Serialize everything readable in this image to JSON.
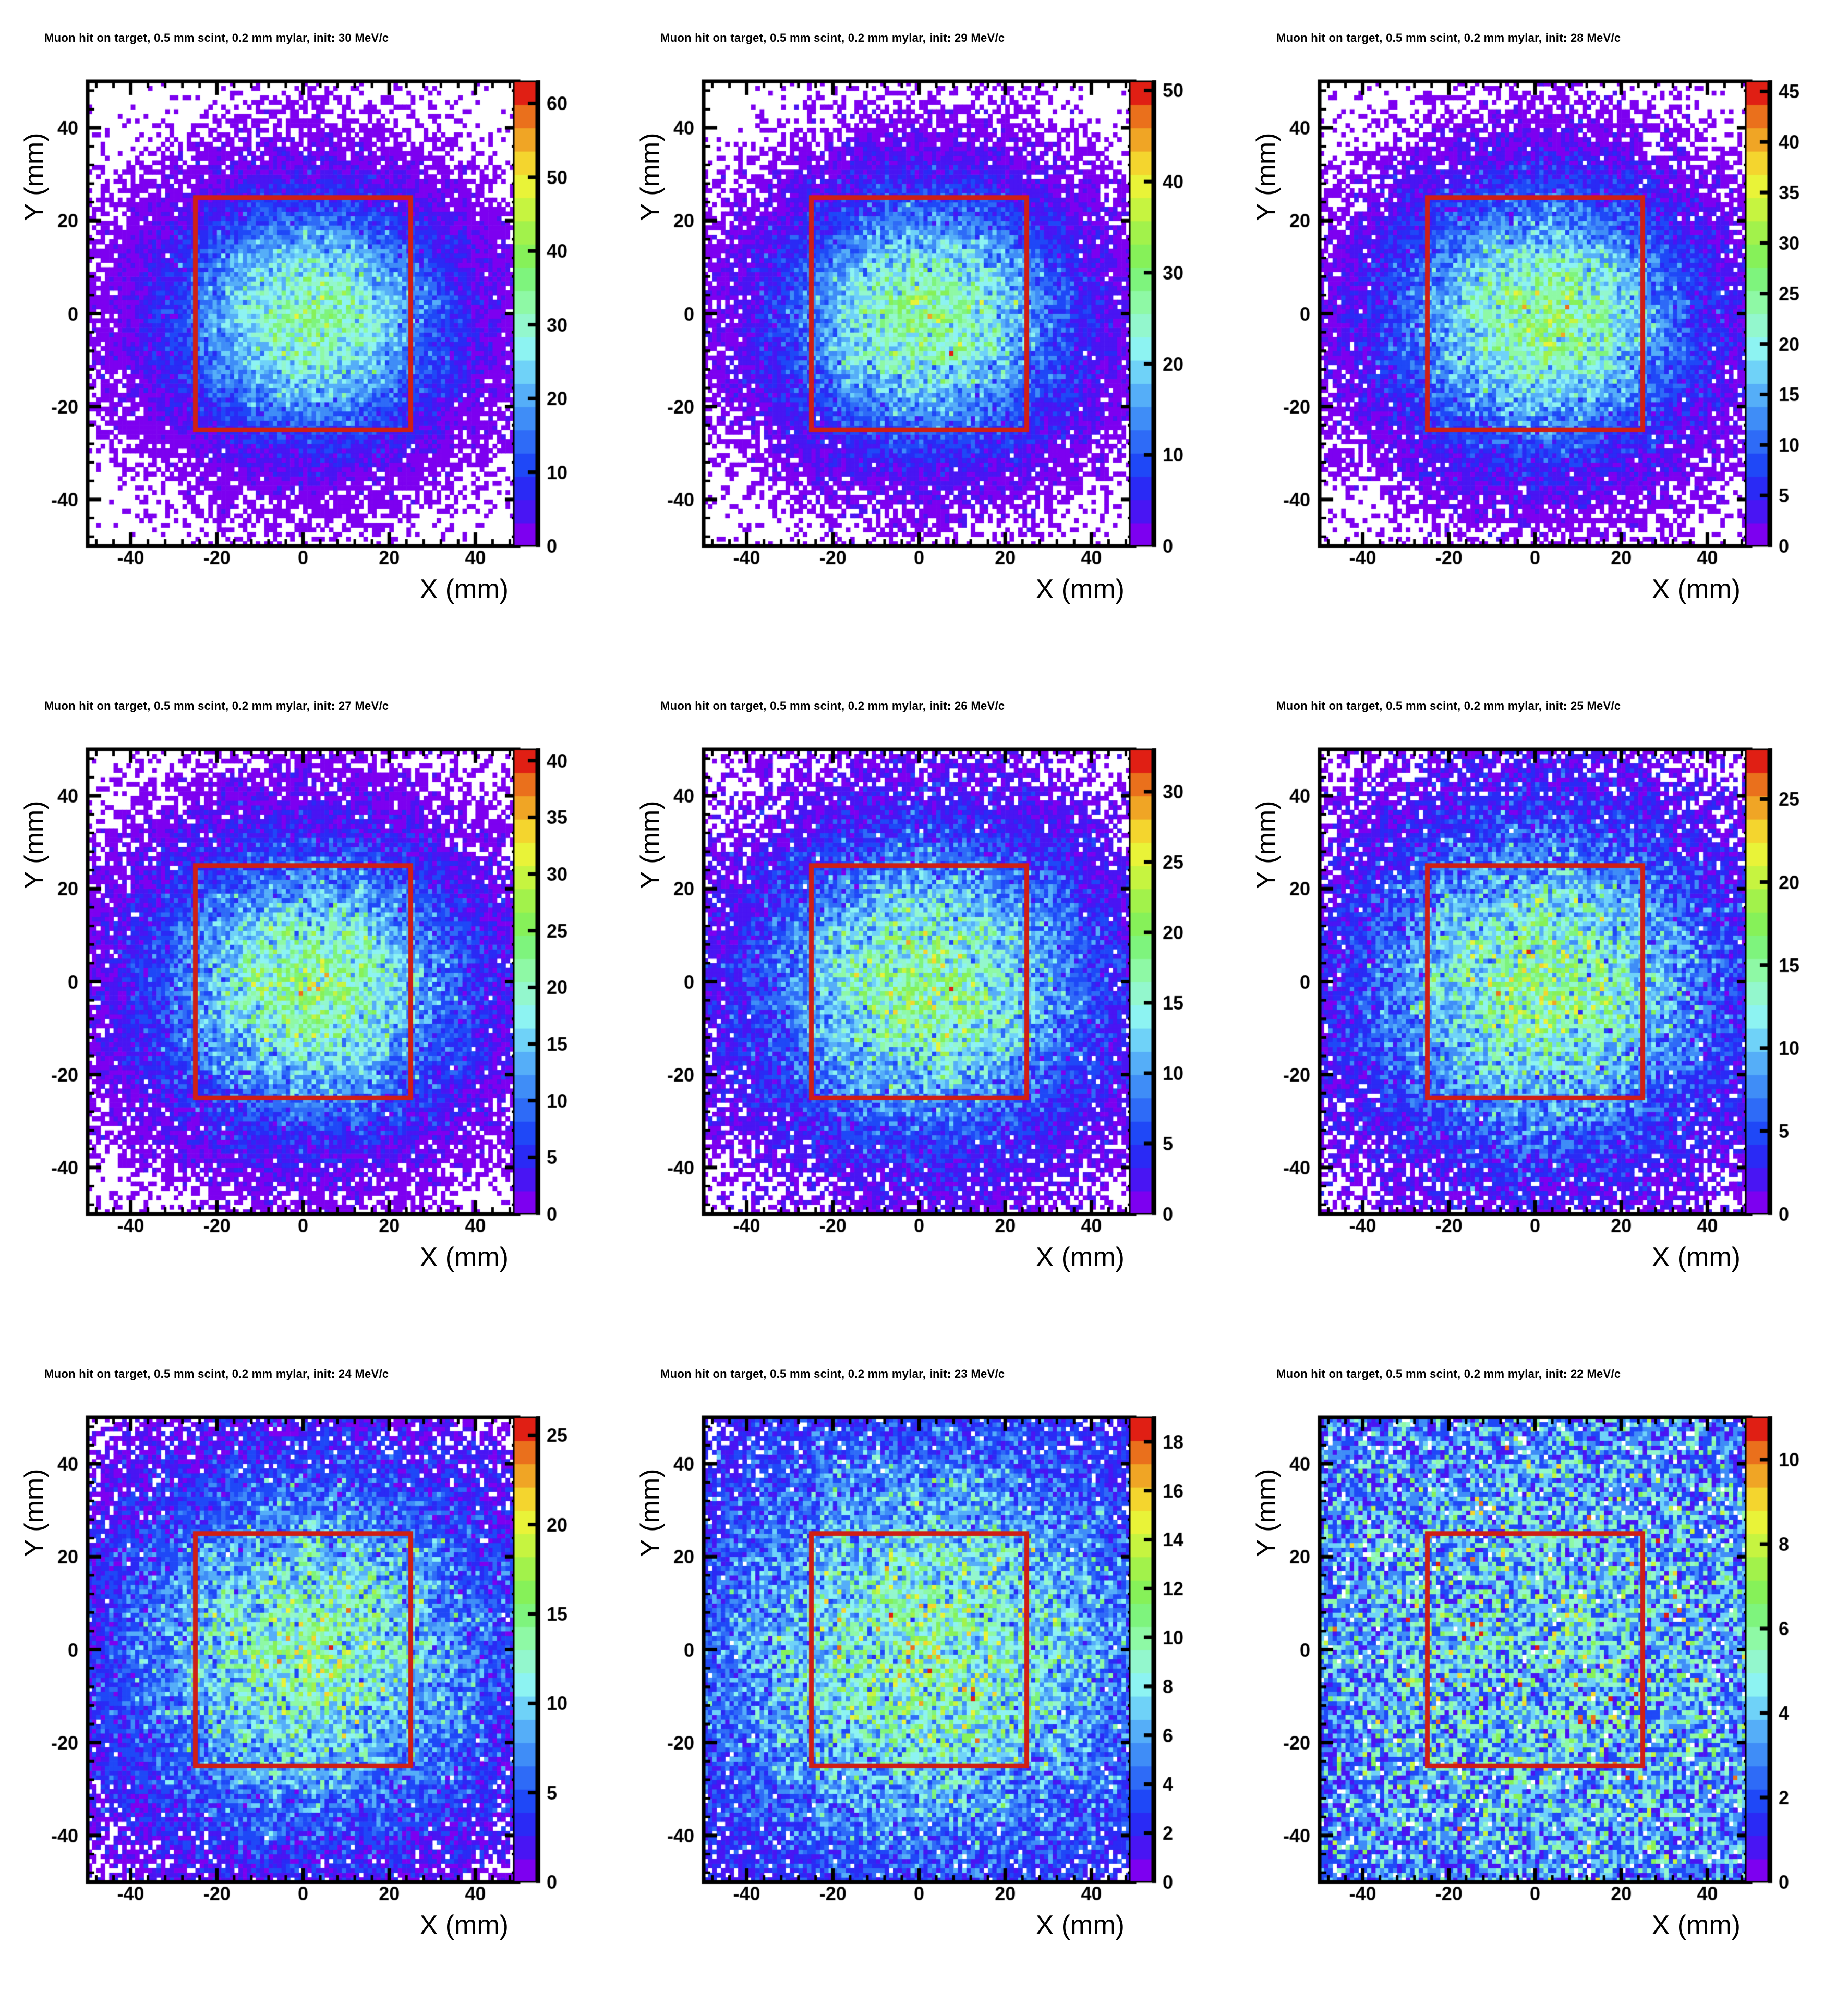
{
  "page": {
    "background": "#ffffff"
  },
  "axes": {
    "x_label": "X (mm)",
    "y_label": "Y (mm)",
    "x_range": [
      -50,
      50
    ],
    "y_range": [
      -50,
      50
    ],
    "x_ticks": [
      -40,
      -20,
      0,
      20,
      40
    ],
    "y_ticks": [
      -40,
      -20,
      0,
      20,
      40
    ],
    "minor_tick_step_mm": 4,
    "grid": false
  },
  "style": {
    "frame_color": "#000000",
    "text_color": "#000000",
    "acceptance_box_color": "#cf1f15",
    "empty_bin_color": "#ffffff",
    "palette": [
      "#7d00f0",
      "#4915f3",
      "#2a2af5",
      "#1f48f7",
      "#2e6bf7",
      "#3f8df7",
      "#55aef8",
      "#6fd2f8",
      "#8df3f2",
      "#93f7cd",
      "#8ef9a5",
      "#7ef47d",
      "#86f159",
      "#a2f24b",
      "#c6f440",
      "#e9f338",
      "#f4d52e",
      "#f0a525",
      "#ea701c",
      "#e01f14"
    ],
    "n_contours": 20,
    "colorbar_position": "right"
  },
  "chart_data": [
    {
      "type": "heatmap",
      "title": "Muon hit on target, 0.5 mm scint, 0.2 mm mylar, init: 30 MeV/c",
      "init_momentum": "30 MeV/c",
      "x_range": [
        -50,
        50
      ],
      "y_range": [
        -50,
        50
      ],
      "bins": [
        100,
        100
      ],
      "zmax": 63,
      "colorbar_ticks": [
        0,
        10,
        20,
        30,
        40,
        50,
        60
      ],
      "profile": {
        "shape": "gaussian-poisson",
        "peak": 34,
        "sigma_x": 20,
        "sigma_y": 16,
        "center_x": 2,
        "center_y": -1
      },
      "red_box": {
        "x": [
          -25,
          25
        ],
        "y": [
          -25,
          25
        ]
      }
    },
    {
      "type": "heatmap",
      "title": "Muon hit on target, 0.5 mm scint, 0.2 mm mylar, init: 29 MeV/c",
      "init_momentum": "29 MeV/c",
      "x_range": [
        -50,
        50
      ],
      "y_range": [
        -50,
        50
      ],
      "bins": [
        100,
        100
      ],
      "zmax": 51,
      "colorbar_ticks": [
        0,
        10,
        20,
        30,
        40,
        50
      ],
      "profile": {
        "shape": "gaussian-poisson",
        "peak": 28.5,
        "sigma_x": 21,
        "sigma_y": 17,
        "center_x": 2,
        "center_y": -1
      },
      "red_box": {
        "x": [
          -25,
          25
        ],
        "y": [
          -25,
          25
        ]
      }
    },
    {
      "type": "heatmap",
      "title": "Muon hit on target, 0.5 mm scint, 0.2 mm mylar, init: 28 MeV/c",
      "init_momentum": "28 MeV/c",
      "x_range": [
        -50,
        50
      ],
      "y_range": [
        -50,
        50
      ],
      "bins": [
        100,
        100
      ],
      "zmax": 46,
      "colorbar_ticks": [
        0,
        5,
        10,
        15,
        20,
        25,
        30,
        35,
        40,
        45
      ],
      "profile": {
        "shape": "gaussian-poisson",
        "peak": 26,
        "sigma_x": 22,
        "sigma_y": 18,
        "center_x": 2,
        "center_y": -1
      },
      "red_box": {
        "x": [
          -25,
          25
        ],
        "y": [
          -25,
          25
        ]
      }
    },
    {
      "type": "heatmap",
      "title": "Muon hit on target, 0.5 mm scint, 0.2 mm mylar, init: 27 MeV/c",
      "init_momentum": "27 MeV/c",
      "x_range": [
        -50,
        50
      ],
      "y_range": [
        -50,
        50
      ],
      "bins": [
        100,
        100
      ],
      "zmax": 41,
      "colorbar_ticks": [
        0,
        5,
        10,
        15,
        20,
        25,
        30,
        35,
        40
      ],
      "profile": {
        "shape": "gaussian-poisson",
        "peak": 23,
        "sigma_x": 23.5,
        "sigma_y": 19.5,
        "center_x": 2,
        "center_y": -1
      },
      "red_box": {
        "x": [
          -25,
          25
        ],
        "y": [
          -25,
          25
        ]
      }
    },
    {
      "type": "heatmap",
      "title": "Muon hit on target, 0.5 mm scint, 0.2 mm mylar, init: 26 MeV/c",
      "init_momentum": "26 MeV/c",
      "x_range": [
        -50,
        50
      ],
      "y_range": [
        -50,
        50
      ],
      "bins": [
        100,
        100
      ],
      "zmax": 33,
      "colorbar_ticks": [
        0,
        5,
        10,
        15,
        20,
        25,
        30
      ],
      "profile": {
        "shape": "gaussian-poisson",
        "peak": 18.5,
        "sigma_x": 25,
        "sigma_y": 21,
        "center_x": 2,
        "center_y": -1
      },
      "red_box": {
        "x": [
          -25,
          25
        ],
        "y": [
          -25,
          25
        ]
      }
    },
    {
      "type": "heatmap",
      "title": "Muon hit on target, 0.5 mm scint, 0.2 mm mylar, init: 25 MeV/c",
      "init_momentum": "25 MeV/c",
      "x_range": [
        -50,
        50
      ],
      "y_range": [
        -50,
        50
      ],
      "bins": [
        100,
        100
      ],
      "zmax": 28,
      "colorbar_ticks": [
        0,
        5,
        10,
        15,
        20,
        25
      ],
      "profile": {
        "shape": "gaussian-poisson",
        "peak": 15.5,
        "sigma_x": 27,
        "sigma_y": 23,
        "center_x": 2,
        "center_y": -1
      },
      "red_box": {
        "x": [
          -25,
          25
        ],
        "y": [
          -25,
          25
        ]
      }
    },
    {
      "type": "heatmap",
      "title": "Muon hit on target, 0.5 mm scint, 0.2 mm mylar, init: 24 MeV/c",
      "init_momentum": "24 MeV/c",
      "x_range": [
        -50,
        50
      ],
      "y_range": [
        -50,
        50
      ],
      "bins": [
        100,
        100
      ],
      "zmax": 26,
      "colorbar_ticks": [
        0,
        5,
        10,
        15,
        20,
        25
      ],
      "profile": {
        "shape": "gaussian-poisson",
        "peak": 13.5,
        "sigma_x": 30,
        "sigma_y": 26,
        "center_x": 2,
        "center_y": -1
      },
      "red_box": {
        "x": [
          -25,
          25
        ],
        "y": [
          -25,
          25
        ]
      }
    },
    {
      "type": "heatmap",
      "title": "Muon hit on target, 0.5 mm scint, 0.2 mm mylar, init: 23 MeV/c",
      "init_momentum": "23 MeV/c",
      "x_range": [
        -50,
        50
      ],
      "y_range": [
        -50,
        50
      ],
      "bins": [
        100,
        100
      ],
      "zmax": 19,
      "colorbar_ticks": [
        0,
        2,
        4,
        6,
        8,
        10,
        12,
        14,
        16,
        18
      ],
      "profile": {
        "shape": "gaussian-poisson",
        "peak": 10,
        "sigma_x": 36,
        "sigma_y": 31,
        "center_x": 2,
        "center_y": -1
      },
      "red_box": {
        "x": [
          -25,
          25
        ],
        "y": [
          -25,
          25
        ]
      }
    },
    {
      "type": "heatmap",
      "title": "Muon hit on target, 0.5 mm scint, 0.2 mm mylar, init: 22 MeV/c",
      "init_momentum": "22 MeV/c",
      "x_range": [
        -50,
        50
      ],
      "y_range": [
        -50,
        50
      ],
      "bins": [
        100,
        100
      ],
      "zmax": 11,
      "colorbar_ticks": [
        0,
        2,
        4,
        6,
        8,
        10
      ],
      "profile": {
        "shape": "gaussian-poisson",
        "peak": 4.3,
        "sigma_x": 62,
        "sigma_y": 56,
        "center_x": 2,
        "center_y": -1
      },
      "red_box": {
        "x": [
          -25,
          25
        ],
        "y": [
          -25,
          25
        ]
      }
    }
  ]
}
